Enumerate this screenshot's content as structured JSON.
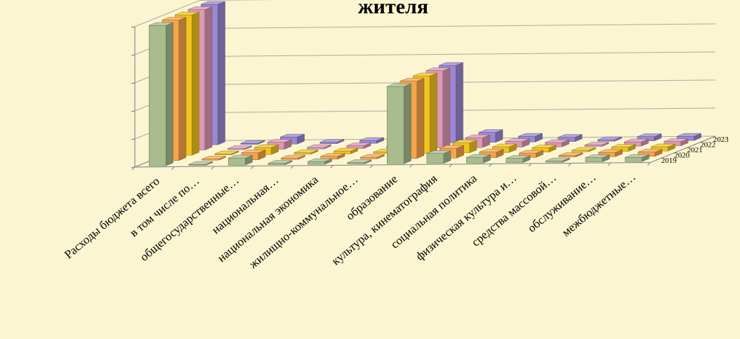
{
  "chart_data": {
    "type": "bar",
    "variant": "3d-grouped",
    "title": "жителя",
    "categories": [
      "Расходы бюджета всего",
      "в том числе по…",
      "общегосударственные…",
      "национальная…",
      "национальная экономика",
      "жилищно-коммунальное…",
      "образование",
      "культура, кинематография",
      "социальная политика",
      "физическая культура и…",
      "средства массовой…",
      "обслуживание…",
      "межбюджетные…"
    ],
    "series": [
      {
        "name": "2019",
        "color": "#a8bc8e",
        "values": [
          100,
          0,
          5,
          1,
          2,
          1,
          55,
          7,
          4,
          3,
          1,
          3,
          3
        ]
      },
      {
        "name": "2020",
        "color": "#f7a44a",
        "values": [
          100,
          0,
          5,
          1,
          2,
          1,
          55,
          7,
          4,
          3,
          1,
          3,
          3
        ]
      },
      {
        "name": "2021",
        "color": "#f0c41e",
        "values": [
          100,
          0,
          5,
          1,
          2,
          1,
          55,
          7,
          4,
          3,
          1,
          3,
          3
        ]
      },
      {
        "name": "2022",
        "color": "#dc98b4",
        "values": [
          100,
          0,
          5,
          1,
          2,
          1,
          55,
          7,
          4,
          3,
          1,
          3,
          3
        ]
      },
      {
        "name": "2023",
        "color": "#9a88d2",
        "values": [
          100,
          0,
          5,
          1,
          2,
          1,
          55,
          7,
          4,
          3,
          1,
          3,
          3
        ]
      }
    ],
    "ylim": [
      0,
      100
    ],
    "grid": true,
    "legend": "none"
  }
}
